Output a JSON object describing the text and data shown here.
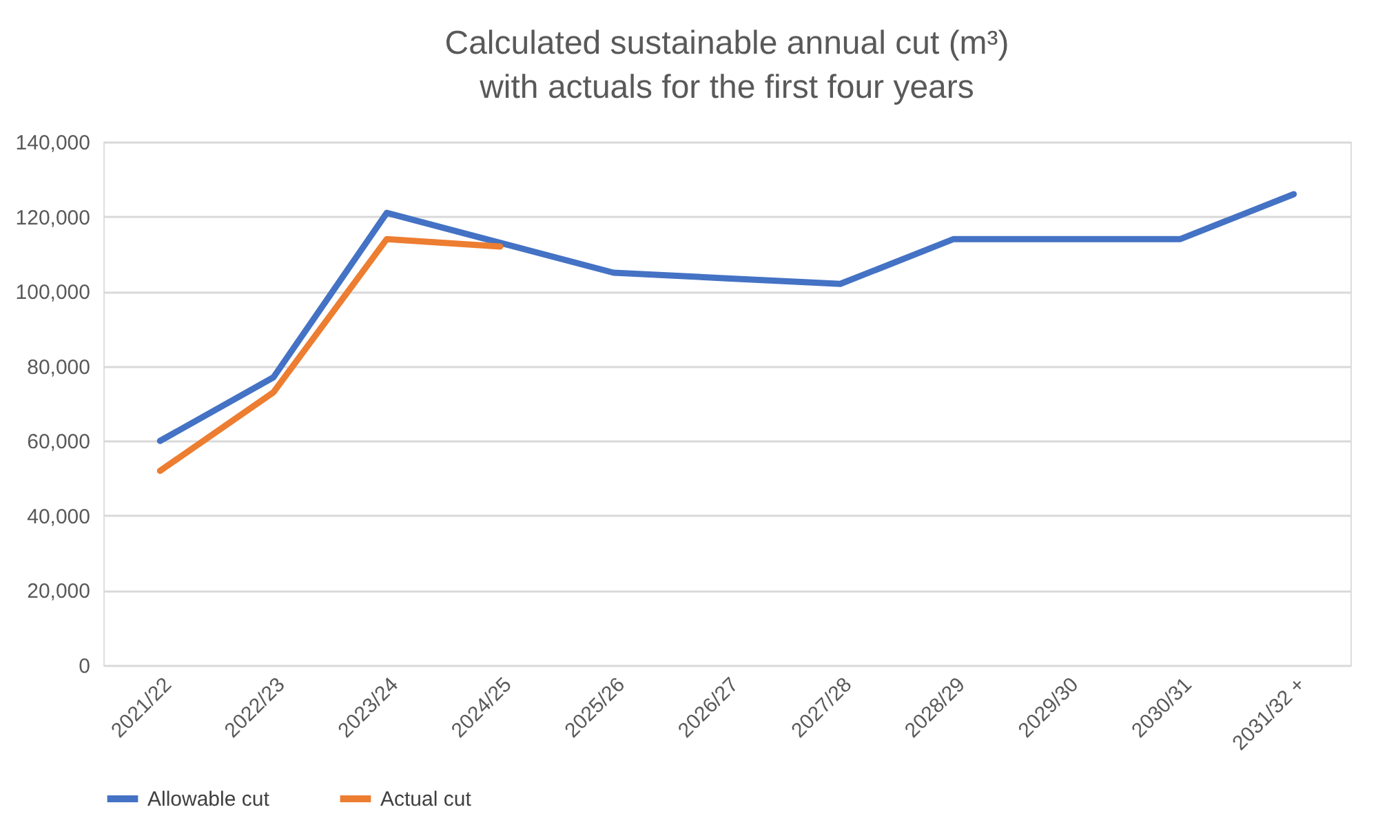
{
  "chart_data": {
    "type": "line",
    "title": "Calculated sustainable annual cut (m³)",
    "subtitle": "with actuals for the first four years",
    "categories": [
      "2021/22",
      "2022/23",
      "2023/24",
      "2024/25",
      "2025/26",
      "2026/27",
      "2027/28",
      "2028/29",
      "2029/30",
      "2030/31",
      "2031/32 +"
    ],
    "series": [
      {
        "name": "Allowable cut",
        "color": "#4472c4",
        "values": [
          60000,
          77000,
          121000,
          113000,
          105000,
          103500,
          102000,
          114000,
          114000,
          114000,
          126000
        ]
      },
      {
        "name": "Actual cut",
        "color": "#ed7d31",
        "values": [
          52000,
          73000,
          114000,
          112000,
          null,
          null,
          null,
          null,
          null,
          null,
          null
        ]
      }
    ],
    "ylim": [
      0,
      140000
    ],
    "yticks": [
      0,
      {
        "value": 20000,
        "label": "20,000"
      },
      {
        "value": 40000,
        "label": "40,000"
      },
      {
        "value": 60000,
        "label": "60,000"
      },
      {
        "value": 80000,
        "label": "80,000"
      },
      {
        "value": 100000,
        "label": "100,000"
      },
      {
        "value": 120000,
        "label": "120,000"
      },
      {
        "value": 140000,
        "label": "140,000"
      }
    ],
    "grid": "y",
    "legend": "bottom",
    "marker": "none",
    "line_style": "solid"
  }
}
